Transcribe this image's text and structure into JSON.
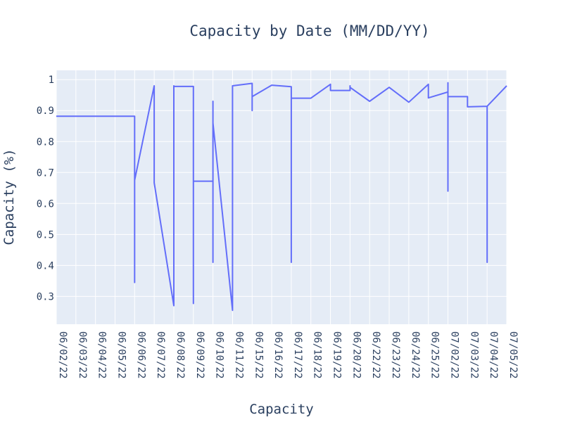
{
  "chart_data": {
    "type": "line",
    "title": "Capacity by Date (MM/DD/YY)",
    "xlabel": "Capacity",
    "ylabel": "Capacity (%)",
    "categories": [
      "06/02/22",
      "06/03/22",
      "06/04/22",
      "06/05/22",
      "06/06/22",
      "06/07/22",
      "06/08/22",
      "06/09/22",
      "06/10/22",
      "06/11/22",
      "06/15/22",
      "06/16/22",
      "06/17/22",
      "06/18/22",
      "06/19/22",
      "06/20/22",
      "06/22/22",
      "06/23/22",
      "06/24/22",
      "06/25/22",
      "07/02/22",
      "07/03/22",
      "07/04/22",
      "07/05/22"
    ],
    "yticks": [
      0.3,
      0.4,
      0.5,
      0.6,
      0.7,
      0.8,
      0.9,
      1
    ],
    "ylim": [
      0.21,
      1.03
    ],
    "xlim": [
      0,
      23
    ],
    "grid": true,
    "colors": {
      "line": "#636efa",
      "plot_bg": "#e5ecf6",
      "grid": "#ffffff",
      "text": "#2a3f5f"
    },
    "series": [
      {
        "x": [
          0,
          4,
          4,
          4,
          5,
          5,
          6,
          6,
          6,
          6,
          7,
          7,
          7,
          8,
          8,
          8,
          8,
          8,
          9,
          9,
          9,
          10,
          10,
          10,
          11,
          12,
          12,
          12,
          12,
          13,
          14,
          14,
          14,
          15,
          15,
          15,
          16,
          17,
          18,
          19,
          19,
          20,
          20,
          20,
          20,
          21,
          21,
          22,
          22,
          22,
          22,
          23
        ],
        "y": [
          0.882,
          0.882,
          0.345,
          0.675,
          0.98,
          0.667,
          0.27,
          0.98,
          0.975,
          0.978,
          0.978,
          0.277,
          0.672,
          0.672,
          0.93,
          0.41,
          0.86,
          0.86,
          0.255,
          0.98,
          0.98,
          0.988,
          0.9,
          0.945,
          0.982,
          0.977,
          0.41,
          0.94,
          0.94,
          0.94,
          0.985,
          0.965,
          0.965,
          0.965,
          0.98,
          0.975,
          0.93,
          0.975,
          0.927,
          0.985,
          0.941,
          0.96,
          0.64,
          0.99,
          0.945,
          0.945,
          0.912,
          0.914,
          0.41,
          0.914,
          0.914,
          0.98
        ]
      }
    ]
  }
}
